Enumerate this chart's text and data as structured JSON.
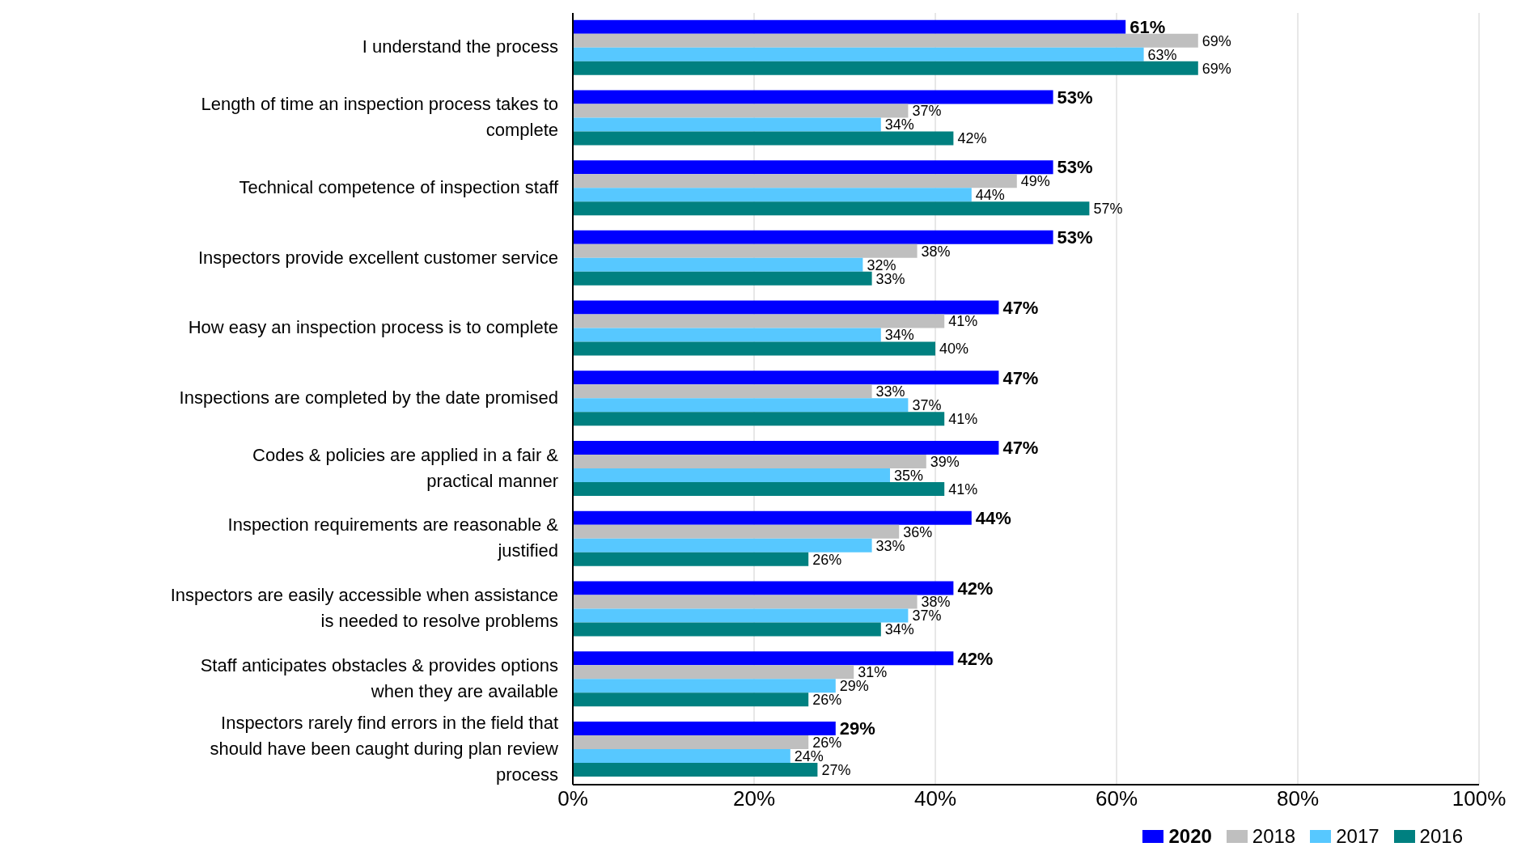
{
  "chart_data": {
    "type": "bar",
    "orientation": "horizontal",
    "categories": [
      "I understand the process",
      "Length of time an inspection process takes to complete",
      "Technical competence of inspection staff",
      "Inspectors provide excellent customer service",
      "How easy an inspection process is to complete",
      "Inspections are completed by the date promised",
      "Codes & policies are applied in a fair & practical manner",
      "Inspection requirements are reasonable & justified",
      "Inspectors are easily accessible when assistance is needed to resolve problems",
      "Staff anticipates obstacles & provides options when they are available",
      "Inspectors rarely find errors in the field that should have been caught during plan review process"
    ],
    "series": [
      {
        "name": "2020",
        "color": "#0000ff",
        "values": [
          61,
          53,
          53,
          53,
          47,
          47,
          47,
          44,
          42,
          42,
          29
        ],
        "value_labels": [
          "61%",
          "53%",
          "53%",
          "53%",
          "47%",
          "47%",
          "47%",
          "44%",
          "42%",
          "42%",
          "29%"
        ]
      },
      {
        "name": "2018",
        "color": "#bfbfbf",
        "values": [
          69,
          37,
          49,
          38,
          41,
          33,
          39,
          36,
          38,
          31,
          26
        ],
        "value_labels": [
          "69%",
          "37%",
          "49%",
          "38%",
          "41%",
          "33%",
          "39%",
          "36%",
          "38%",
          "31%",
          "26%"
        ]
      },
      {
        "name": "2017",
        "color": "#57c8ff",
        "values": [
          63,
          34,
          44,
          32,
          34,
          37,
          35,
          33,
          37,
          29,
          24
        ],
        "value_labels": [
          "63%",
          "34%",
          "44%",
          "32%",
          "34%",
          "37%",
          "35%",
          "33%",
          "37%",
          "29%",
          "24%"
        ]
      },
      {
        "name": "2016",
        "color": "#008080",
        "values": [
          69,
          42,
          57,
          33,
          40,
          41,
          41,
          26,
          34,
          26,
          27
        ],
        "value_labels": [
          "69%",
          "42%",
          "57%",
          "33%",
          "40%",
          "41%",
          "41%",
          "26%",
          "34%",
          "26%",
          "27%"
        ]
      }
    ],
    "xlim": [
      0,
      100
    ],
    "xticks": [
      {
        "value": 0,
        "label": "0%"
      },
      {
        "value": 20,
        "label": "20%"
      },
      {
        "value": 40,
        "label": "40%"
      },
      {
        "value": 60,
        "label": "60%"
      },
      {
        "value": 80,
        "label": "80%"
      },
      {
        "value": 100,
        "label": "100%"
      }
    ],
    "grid": "x",
    "legend": "bottom right"
  }
}
